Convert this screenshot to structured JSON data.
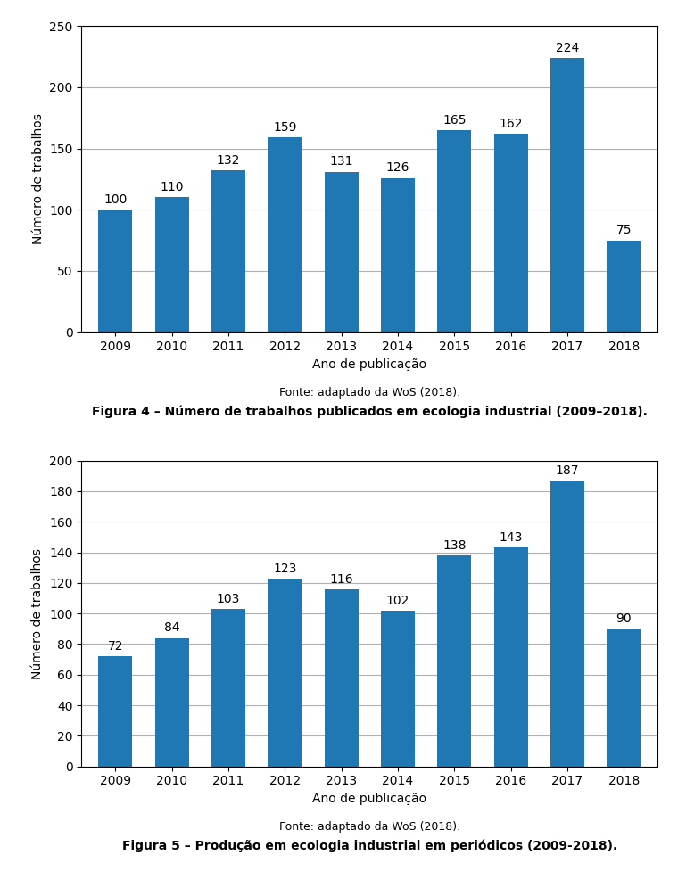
{
  "chart_data": [
    {
      "type": "bar",
      "title": "Figura 4 – Número de trabalhos publicados em ecologia industrial (2009–2018).",
      "annotations": [
        "Fonte: adaptado da WoS (2018)."
      ],
      "x_label": "Ano de publicação",
      "y_label": "Número de trabalhos",
      "categories": [
        "2009",
        "2010",
        "2011",
        "2012",
        "2013",
        "2014",
        "2015",
        "2016",
        "2017",
        "2018"
      ],
      "values": [
        100,
        110,
        132,
        159,
        131,
        126,
        165,
        162,
        224,
        75
      ],
      "ylim": [
        0,
        250
      ],
      "yticks": [
        0,
        50,
        100,
        150,
        200,
        250
      ],
      "grid": true,
      "data_labels": true
    },
    {
      "type": "bar",
      "title": "Figura 5 – Produção em ecologia industrial em periódicos (2009-2018).",
      "annotations": [
        "Fonte: adaptado da WoS (2018)."
      ],
      "x_label": "Ano de publicação",
      "y_label": "Número de trabalhos",
      "categories": [
        "2009",
        "2010",
        "2011",
        "2012",
        "2013",
        "2014",
        "2015",
        "2016",
        "2017",
        "2018"
      ],
      "values": [
        72,
        84,
        103,
        123,
        116,
        102,
        138,
        143,
        187,
        90
      ],
      "ylim": [
        0,
        200
      ],
      "yticks": [
        0,
        20,
        40,
        60,
        80,
        100,
        120,
        140,
        160,
        180,
        200
      ],
      "grid": true,
      "data_labels": true
    }
  ]
}
